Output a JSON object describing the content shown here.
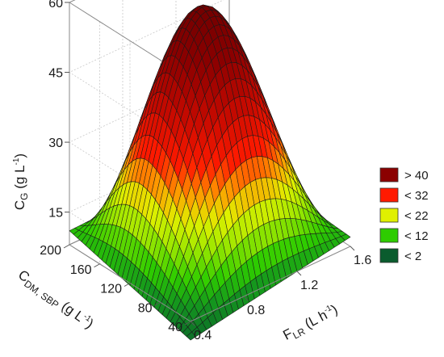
{
  "chart_data": {
    "type": "surface3d",
    "z_axis": {
      "label": {
        "main": "C",
        "sub": "G",
        "rest": " (g L",
        "sup": "-1",
        "end": ")"
      },
      "ticks": [
        15,
        30,
        45,
        60
      ],
      "range": [
        8,
        60
      ]
    },
    "y_axis": {
      "label": {
        "main": "C",
        "sub": "DM, SBP",
        "rest": " (g L",
        "sup": "-1",
        "end": ")"
      },
      "ticks": [
        40,
        80,
        120,
        160,
        200
      ],
      "range": [
        40,
        200
      ]
    },
    "x_axis": {
      "label": {
        "main": "F",
        "sub": "LR",
        "rest": " (L h",
        "sup": "-1",
        "end": ")"
      },
      "ticks": [
        0.4,
        0.8,
        1.2,
        1.6
      ],
      "range": [
        0.4,
        1.6
      ]
    },
    "surface": {
      "peak_value": 58,
      "peak_x": 1.0,
      "peak_y": 130,
      "corner_values": {
        "x_min_y_min": 4,
        "x_max_y_min": 10,
        "x_min_y_max": 11,
        "x_max_y_max": 12
      }
    },
    "legend": {
      "position": "right",
      "entries": [
        {
          "label": "> 40",
          "color": "#8b0000"
        },
        {
          "label": "< 32",
          "color": "#ff1a00"
        },
        {
          "label": "< 22",
          "color": "#e0f000"
        },
        {
          "label": "< 12",
          "color": "#2ecc00"
        },
        {
          "label": "< 2",
          "color": "#0a5c2e"
        }
      ]
    },
    "grid": true
  }
}
